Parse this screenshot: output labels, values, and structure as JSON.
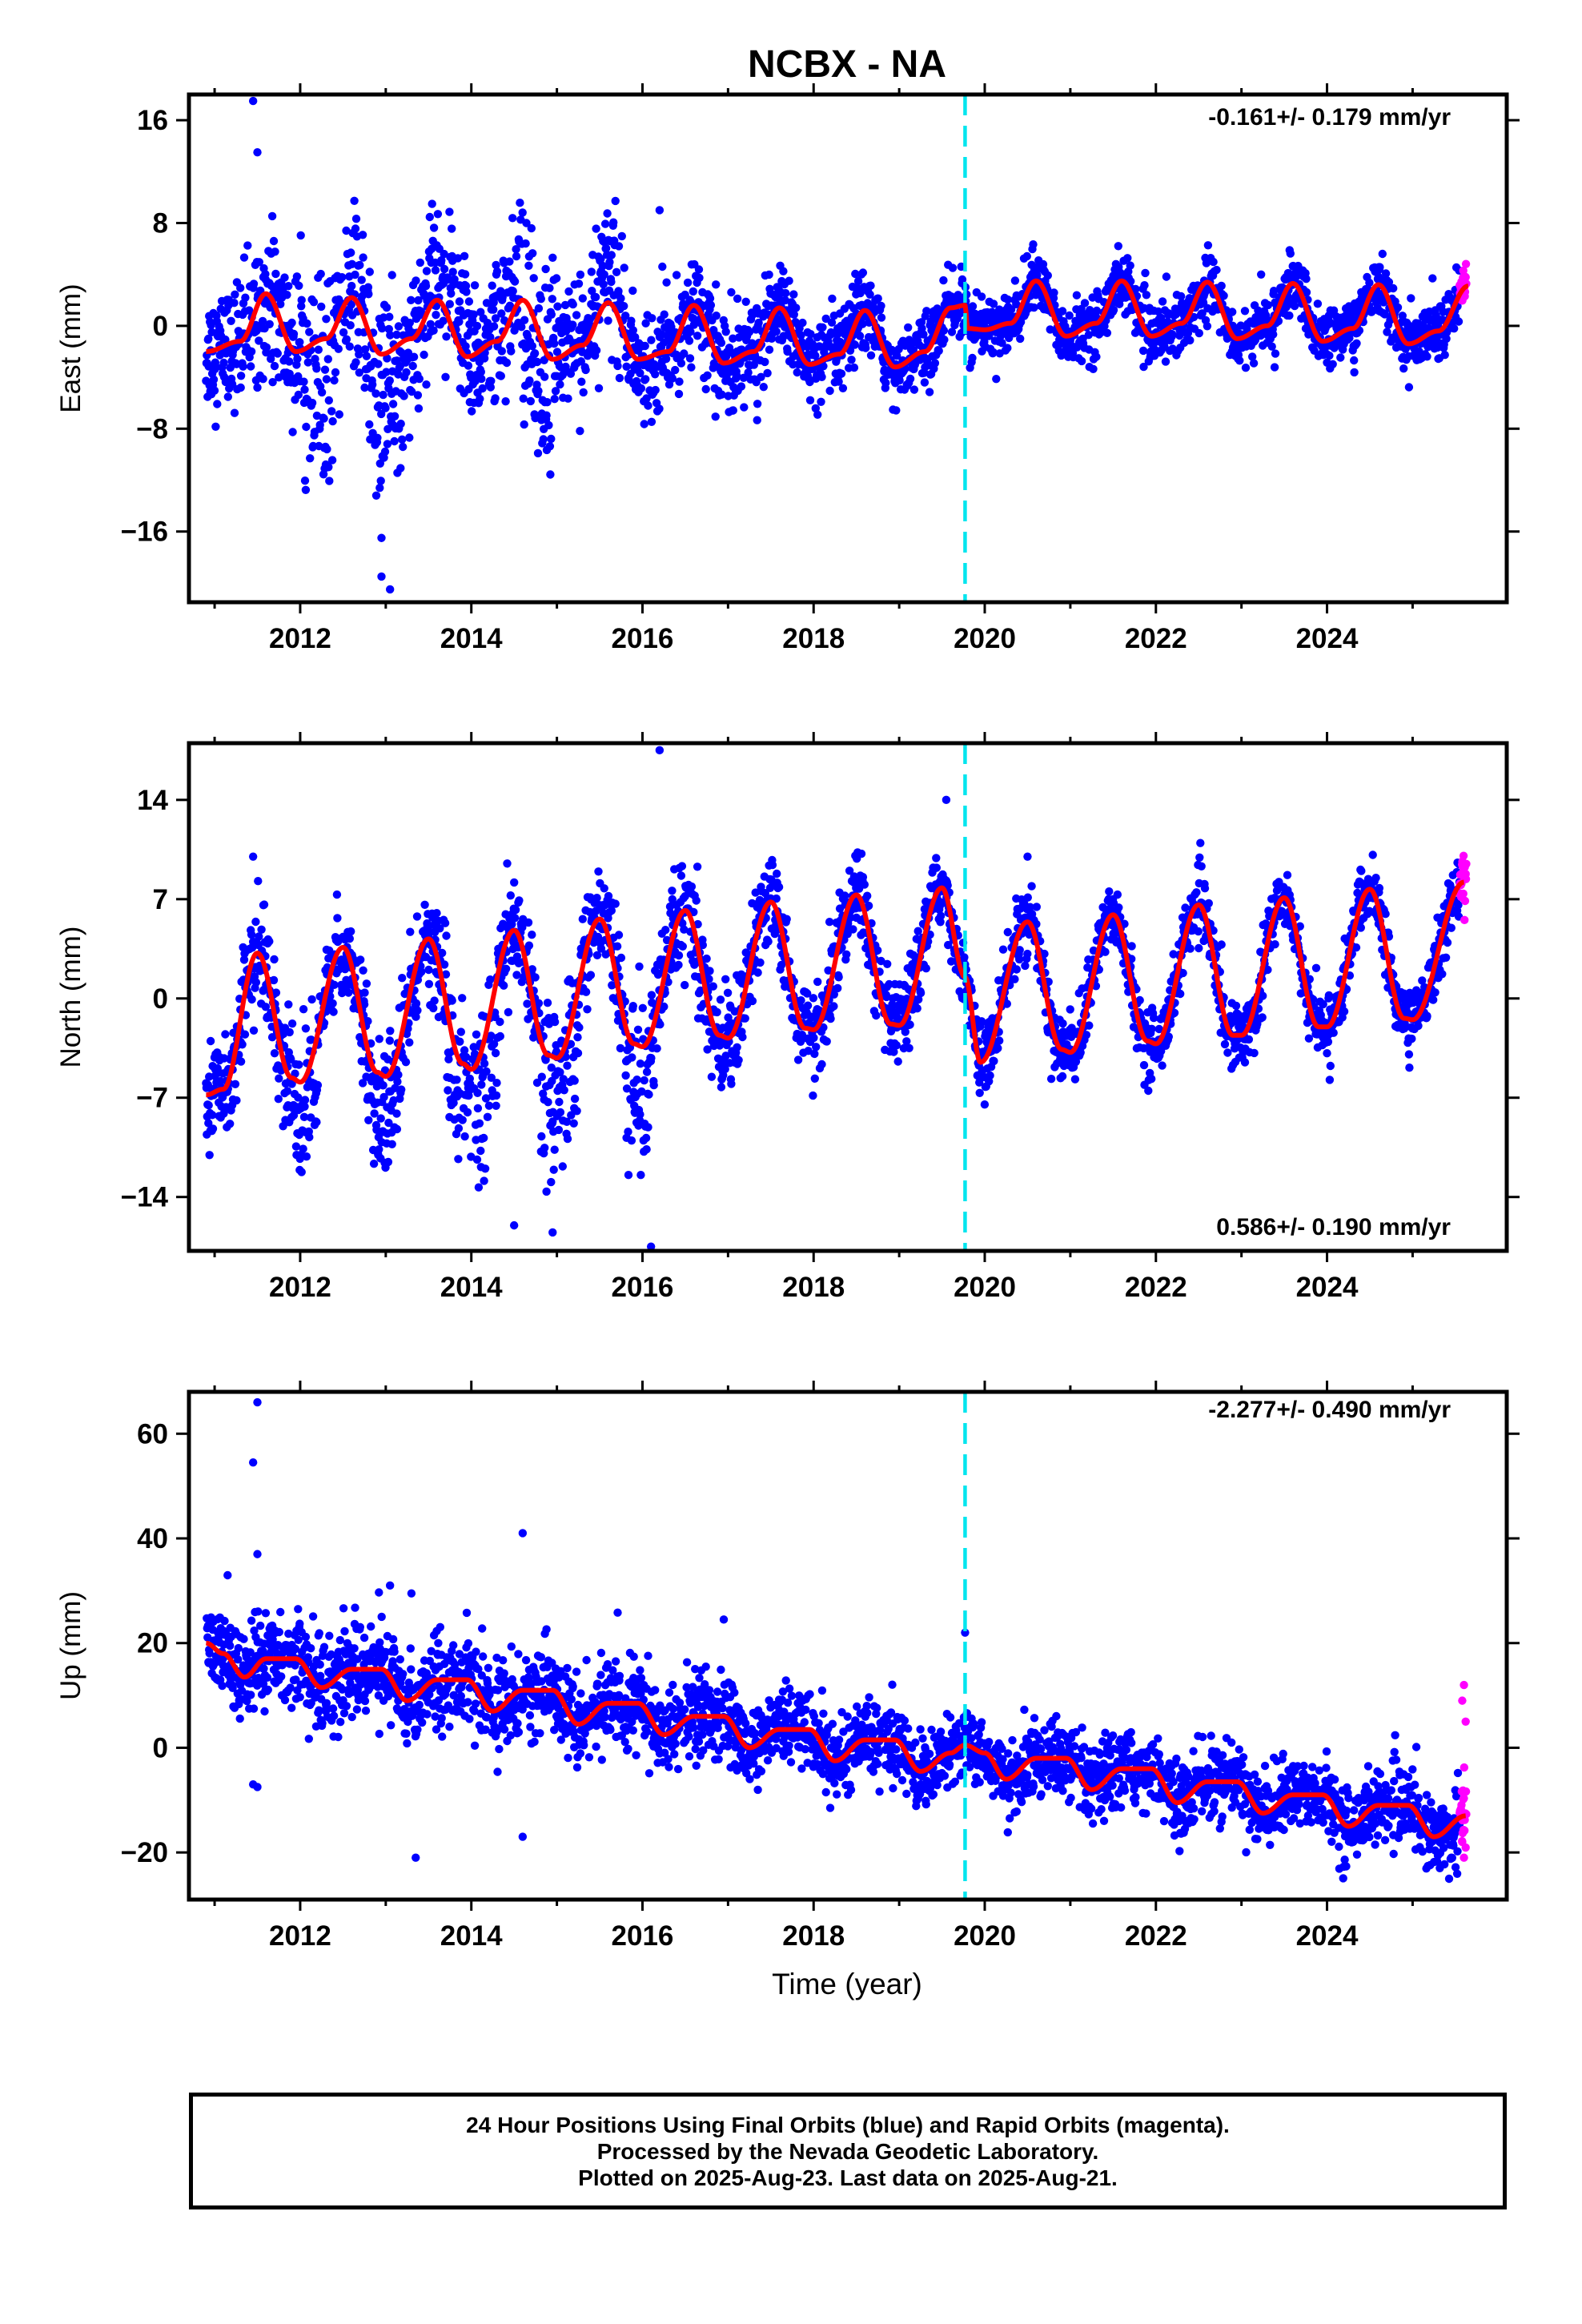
{
  "title": "NCBX - NA",
  "colors": {
    "final_orbits": "#0000ff",
    "rapid_orbits": "#ff00ff",
    "model": "#ff0000",
    "event_line": "#00e5ee",
    "axes": "#000000"
  },
  "xlabel": "Time (year)",
  "caption": {
    "line1": "24 Hour Positions Using Final Orbits (blue) and Rapid Orbits (magenta).",
    "line2": "Processed by the Nevada Geodetic Laboratory.",
    "line3": "Plotted on 2025-Aug-23. Last data on 2025-Aug-21."
  },
  "chart_data": [
    {
      "type": "scatter",
      "ylabel": "East (mm)",
      "rate_label": "-0.161+/- 0.179 mm/yr",
      "rate_position": "top-right",
      "xlim": [
        2010.7,
        2026.1
      ],
      "ylim": [
        -21.5,
        18.0
      ],
      "xticks": [
        "2012",
        "2014",
        "2016",
        "2018",
        "2020",
        "2022",
        "2024"
      ],
      "yticks": [
        "16",
        "8",
        "0",
        "−8",
        "−16"
      ],
      "event_line_x": 2019.77,
      "model_knots": {
        "x": [
          2010.9,
          2011.3,
          2011.6,
          2011.95,
          2012.3,
          2012.6,
          2012.95,
          2013.3,
          2013.6,
          2013.95,
          2014.3,
          2014.6,
          2014.95,
          2015.3,
          2015.6,
          2015.95,
          2016.3,
          2016.6,
          2016.95,
          2017.3,
          2017.6,
          2017.95,
          2018.3,
          2018.6,
          2018.95,
          2019.3,
          2019.6,
          2019.77,
          2019.8,
          2020.0,
          2020.3,
          2020.6,
          2020.95,
          2021.3,
          2021.6,
          2021.95,
          2022.3,
          2022.6,
          2022.95,
          2023.3,
          2023.6,
          2023.95,
          2024.3,
          2024.6,
          2024.95,
          2025.3,
          2025.65
        ],
        "y": [
          -2.0,
          -1.2,
          2.5,
          -2.0,
          -1.0,
          2.2,
          -2.2,
          -1.0,
          2.0,
          -2.4,
          -1.2,
          2.0,
          -2.6,
          -1.5,
          1.8,
          -2.6,
          -2.0,
          1.6,
          -2.9,
          -2.0,
          1.4,
          -3.0,
          -2.2,
          1.2,
          -3.2,
          -2.0,
          1.4,
          1.6,
          -0.2,
          -0.3,
          0.2,
          3.5,
          -0.8,
          0.2,
          3.5,
          -0.8,
          0.2,
          3.4,
          -1.0,
          0.0,
          3.3,
          -1.2,
          -0.2,
          3.2,
          -1.4,
          -0.4,
          3.1
        ]
      },
      "scatter_model": {
        "spread": [
          [
            2010.9,
            2.2
          ],
          [
            2012.0,
            3.0
          ],
          [
            2016.2,
            2.0
          ],
          [
            2019.77,
            1.2
          ],
          [
            2025.6,
            1.1
          ]
        ],
        "excursions": [
          [
            2012.05,
            2012.4,
            -8.0
          ],
          [
            2012.8,
            2013.2,
            -7.5
          ],
          [
            2013.4,
            2013.95,
            5.0
          ],
          [
            2014.25,
            2015.05,
            4.5
          ],
          [
            2014.6,
            2014.95,
            -6.0
          ],
          [
            2015.4,
            2015.8,
            5.5
          ],
          [
            2016.0,
            2016.2,
            -4.0
          ]
        ]
      },
      "outliers": [
        [
          2011.45,
          17.5
        ],
        [
          2011.5,
          13.5
        ],
        [
          2012.95,
          -16.5
        ],
        [
          2012.95,
          -19.5
        ],
        [
          2013.05,
          -20.5
        ],
        [
          2011.5,
          -4.8
        ],
        [
          2016.2,
          9.0
        ]
      ],
      "rapid_range": [
        2025.55,
        2025.63
      ]
    },
    {
      "type": "scatter",
      "ylabel": "North (mm)",
      "rate_label": "0.586+/- 0.190 mm/yr",
      "rate_position": "bottom-right",
      "xlim": [
        2010.7,
        2026.1
      ],
      "ylim": [
        -17.8,
        18.0
      ],
      "xticks": [
        "2012",
        "2014",
        "2016",
        "2018",
        "2020",
        "2022",
        "2024"
      ],
      "yticks": [
        "14",
        "7",
        "0",
        "−7",
        "−14"
      ],
      "event_line_x": 2019.77,
      "model_knots": {
        "x": [
          2010.9,
          2011.1,
          2011.5,
          2011.9,
          2012.0,
          2012.5,
          2012.9,
          2013.0,
          2013.5,
          2013.9,
          2014.0,
          2014.5,
          2014.9,
          2015.0,
          2015.5,
          2015.9,
          2016.0,
          2016.5,
          2016.9,
          2017.0,
          2017.5,
          2017.9,
          2018.0,
          2018.5,
          2018.9,
          2019.0,
          2019.5,
          2019.77,
          2019.95,
          2020.5,
          2020.9,
          2021.0,
          2021.5,
          2021.9,
          2022.0,
          2022.5,
          2022.9,
          2023.0,
          2023.5,
          2023.9,
          2024.0,
          2024.5,
          2024.9,
          2025.0,
          2025.6
        ],
        "y": [
          -6.8,
          -6.4,
          3.2,
          -5.6,
          -5.9,
          3.6,
          -5.2,
          -5.5,
          4.2,
          -4.6,
          -5.0,
          4.8,
          -4.0,
          -4.2,
          5.6,
          -3.2,
          -3.4,
          6.2,
          -2.6,
          -2.8,
          6.8,
          -2.1,
          -2.2,
          7.3,
          -1.8,
          -1.9,
          7.8,
          1.5,
          -4.5,
          5.4,
          -3.6,
          -3.8,
          5.9,
          -3.0,
          -3.2,
          6.6,
          -2.6,
          -2.6,
          7.1,
          -2.0,
          -2.0,
          7.7,
          -1.4,
          -1.5,
          8.2
        ]
      },
      "scatter_model": {
        "spread": [
          [
            2010.9,
            1.8
          ],
          [
            2016.2,
            2.0
          ],
          [
            2019.77,
            1.2
          ],
          [
            2025.6,
            1.1
          ]
        ],
        "excursions": [
          [
            2011.9,
            2012.2,
            -5.0
          ],
          [
            2012.85,
            2013.2,
            -5.0
          ],
          [
            2013.7,
            2014.1,
            -5.5
          ],
          [
            2014.1,
            2014.35,
            -7.5
          ],
          [
            2014.8,
            2015.25,
            -8.0
          ],
          [
            2015.8,
            2016.15,
            -7.0
          ]
        ]
      },
      "outliers": [
        [
          2016.2,
          17.5
        ],
        [
          2011.45,
          10.0
        ],
        [
          2016.1,
          -17.5
        ],
        [
          2014.95,
          -16.5
        ],
        [
          2014.5,
          -16.0
        ],
        [
          2020.5,
          10.0
        ],
        [
          2019.55,
          14.0
        ]
      ],
      "rapid_range": [
        2025.55,
        2025.63
      ]
    },
    {
      "type": "scatter",
      "ylabel": "Up (mm)",
      "rate_label": "-2.277+/- 0.490 mm/yr",
      "rate_position": "top-right",
      "xlim": [
        2010.7,
        2026.1
      ],
      "ylim": [
        -29.0,
        68.0
      ],
      "xticks": [
        "2012",
        "2014",
        "2016",
        "2018",
        "2020",
        "2022",
        "2024"
      ],
      "yticks": [
        "60",
        "40",
        "20",
        "0",
        "−20"
      ],
      "event_line_x": 2019.77,
      "model_knots": {
        "x": [
          2010.9,
          2011.1,
          2011.35,
          2011.6,
          2011.95,
          2012.25,
          2012.6,
          2012.95,
          2013.25,
          2013.6,
          2013.95,
          2014.25,
          2014.6,
          2014.95,
          2015.25,
          2015.6,
          2015.95,
          2016.25,
          2016.6,
          2016.95,
          2017.25,
          2017.6,
          2017.95,
          2018.25,
          2018.6,
          2018.95,
          2019.25,
          2019.6,
          2019.77,
          2020.0,
          2020.25,
          2020.6,
          2020.95,
          2021.25,
          2021.6,
          2021.95,
          2022.25,
          2022.6,
          2022.95,
          2023.25,
          2023.6,
          2023.95,
          2024.25,
          2024.6,
          2024.95,
          2025.25,
          2025.62
        ],
        "y": [
          20.0,
          18.0,
          13.5,
          17.0,
          17.0,
          11.5,
          15.0,
          15.0,
          9.0,
          13.0,
          13.0,
          7.0,
          11.0,
          11.0,
          4.5,
          8.5,
          8.5,
          2.5,
          6.0,
          6.0,
          0.0,
          3.5,
          3.5,
          -2.5,
          1.5,
          1.5,
          -4.5,
          -1.0,
          0.5,
          -1.0,
          -6.0,
          -2.0,
          -2.0,
          -8.0,
          -4.0,
          -4.0,
          -10.5,
          -6.5,
          -6.5,
          -12.5,
          -9.0,
          -9.0,
          -15.0,
          -11.0,
          -11.0,
          -17.0,
          -13.0
        ]
      },
      "scatter_model": {
        "spread": [
          [
            2010.9,
            4.0
          ],
          [
            2012.5,
            4.5
          ],
          [
            2016.0,
            4.0
          ],
          [
            2019.77,
            3.5
          ],
          [
            2025.6,
            3.5
          ]
        ],
        "excursions": []
      },
      "outliers": [
        [
          2011.5,
          66.0
        ],
        [
          2011.45,
          54.5
        ],
        [
          2011.5,
          37.0
        ],
        [
          2014.6,
          41.0
        ],
        [
          2016.95,
          24.5
        ],
        [
          2019.77,
          22.0
        ],
        [
          2013.35,
          -21.0
        ],
        [
          2014.6,
          -17.0
        ],
        [
          2011.45,
          -7.0
        ],
        [
          2011.5,
          -7.5
        ],
        [
          2013.3,
          29.5
        ],
        [
          2013.05,
          31.0
        ]
      ],
      "rapid_range": [
        2025.55,
        2025.63
      ],
      "rapid_outliers": [
        [
          2025.6,
          12.0
        ],
        [
          2025.58,
          9.0
        ],
        [
          2025.62,
          5.0
        ],
        [
          2025.6,
          -21.0
        ],
        [
          2025.58,
          -18.0
        ]
      ]
    }
  ]
}
